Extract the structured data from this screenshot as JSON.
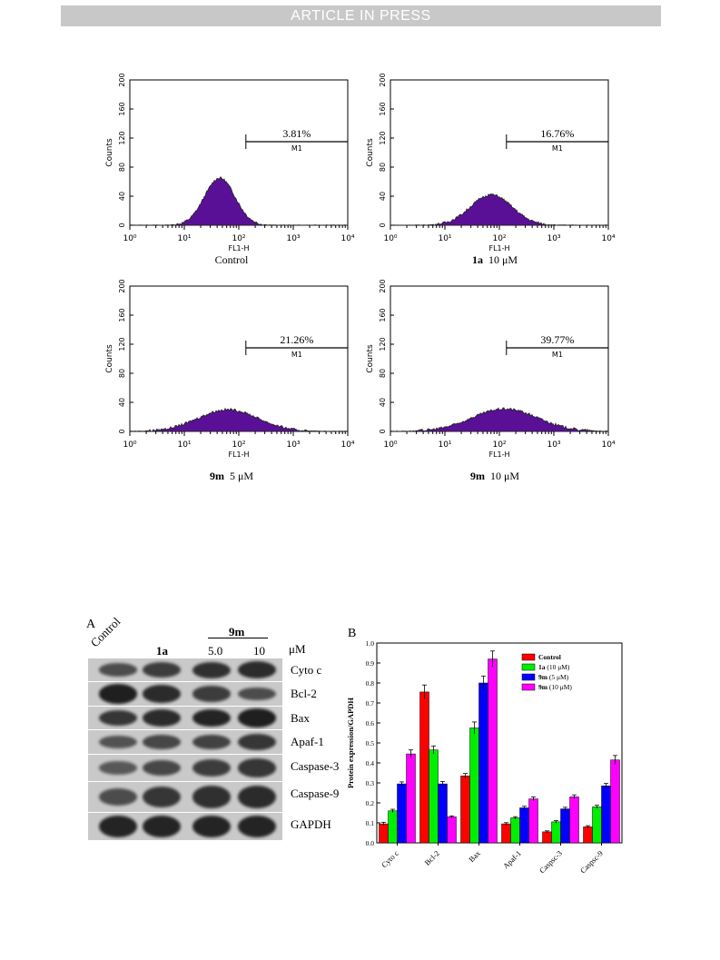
{
  "banner": "ARTICLE IN PRESS",
  "histograms": [
    {
      "caption_bold": "",
      "caption": "Control",
      "percent": "3.81%",
      "marker": "M1",
      "peak_log": 1.65,
      "sigma": 0.28,
      "peak_count": 65,
      "gate_log": 2.13
    },
    {
      "caption_bold": "1a",
      "caption": "10 μM",
      "percent": "16.76%",
      "marker": "M1",
      "peak_log": 1.85,
      "sigma": 0.38,
      "peak_count": 42,
      "gate_log": 2.13
    },
    {
      "caption_bold": "9m",
      "caption": "5 μM",
      "percent": "21.26%",
      "marker": "M1",
      "peak_log": 1.8,
      "sigma": 0.55,
      "peak_count": 30,
      "gate_log": 2.13
    },
    {
      "caption_bold": "9m",
      "caption": "10 μM",
      "percent": "39.77%",
      "marker": "M1",
      "peak_log": 2.1,
      "sigma": 0.6,
      "peak_count": 31,
      "gate_log": 2.13
    }
  ],
  "hist_axes": {
    "ylabel": "Counts",
    "xlabel": "FL1-H",
    "yticks": [
      "0",
      "40",
      "80",
      "120",
      "160",
      "200"
    ],
    "xticks": [
      "10⁰",
      "10¹",
      "10²",
      "10³",
      "10⁴"
    ],
    "fill": "#5a1096",
    "outline": "#222222"
  },
  "blot": {
    "letter": "A",
    "lanes": [
      "Control",
      "1a",
      "5.0",
      "10"
    ],
    "group_label": "9m",
    "unit": "μM",
    "rows": [
      {
        "label": "Cyto c",
        "intensity": [
          0.55,
          0.7,
          0.8,
          0.85
        ]
      },
      {
        "label": "Bcl-2",
        "intensity": [
          0.95,
          0.85,
          0.7,
          0.55
        ]
      },
      {
        "label": "Bax",
        "intensity": [
          0.75,
          0.85,
          0.9,
          0.95
        ]
      },
      {
        "label": "Apaf-1",
        "intensity": [
          0.5,
          0.6,
          0.65,
          0.75
        ]
      },
      {
        "label": "Caspase-3",
        "intensity": [
          0.45,
          0.6,
          0.7,
          0.75
        ]
      },
      {
        "label": "Caspase-9",
        "intensity": [
          0.55,
          0.75,
          0.8,
          0.85
        ]
      },
      {
        "label": "GAPDH",
        "intensity": [
          0.9,
          0.9,
          0.9,
          0.9
        ]
      }
    ]
  },
  "chart_data": {
    "type": "bar",
    "letter": "B",
    "title": "",
    "xlabel": "",
    "ylabel": "Protein expression/GAPDH",
    "ylim": [
      0.0,
      1.0
    ],
    "yticks": [
      "0.0",
      "0.1",
      "0.2",
      "0.3",
      "0.4",
      "0.5",
      "0.6",
      "0.7",
      "0.8",
      "0.9",
      "1.0"
    ],
    "categories": [
      "Cyto c",
      "Bcl-2",
      "Bax",
      "Apaf-1",
      "Caspsc-3",
      "Caspsc-9"
    ],
    "series": [
      {
        "name": "Control",
        "name_bold": "",
        "name_rest": "Control",
        "color": "#ff0000",
        "values": [
          0.095,
          0.755,
          0.335,
          0.095,
          0.055,
          0.08
        ],
        "errors": [
          0.008,
          0.035,
          0.012,
          0.006,
          0.005,
          0.006
        ]
      },
      {
        "name": "1a (10 μM)",
        "name_bold": "1a",
        "name_rest": " (10 μM)",
        "color": "#00ee00",
        "values": [
          0.16,
          0.465,
          0.575,
          0.125,
          0.105,
          0.18
        ],
        "errors": [
          0.008,
          0.02,
          0.03,
          0.006,
          0.006,
          0.008
        ]
      },
      {
        "name": "9m (5 μM)",
        "name_bold": "9m",
        "name_rest": " (5 μM)",
        "color": "#0000ff",
        "values": [
          0.295,
          0.295,
          0.8,
          0.175,
          0.17,
          0.285
        ],
        "errors": [
          0.01,
          0.012,
          0.035,
          0.008,
          0.008,
          0.012
        ]
      },
      {
        "name": "9m (10 μM)",
        "name_bold": "9m",
        "name_rest": " (10 μM)",
        "color": "#ff00ff",
        "values": [
          0.445,
          0.13,
          0.92,
          0.22,
          0.23,
          0.415
        ],
        "errors": [
          0.02,
          0.005,
          0.04,
          0.01,
          0.01,
          0.022
        ]
      }
    ],
    "legend": "top-right",
    "grid": false
  }
}
